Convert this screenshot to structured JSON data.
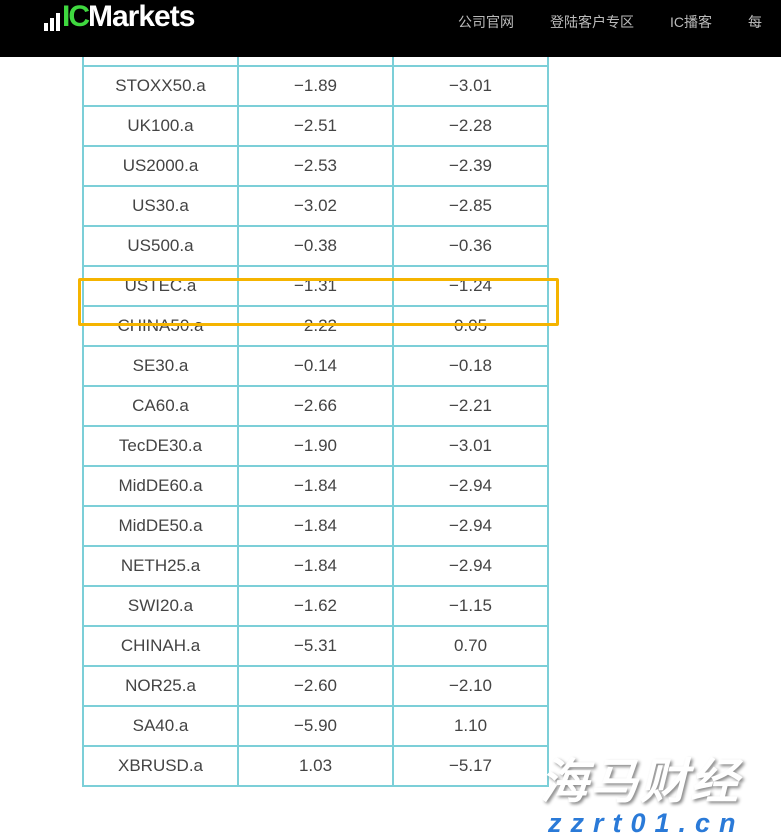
{
  "header": {
    "logo": {
      "ic": "IC",
      "markets": "Markets"
    },
    "nav": [
      "公司官网",
      "登陆客户专区",
      "IC播客",
      "每"
    ]
  },
  "table": {
    "rows": [
      [
        "",
        "",
        " "
      ],
      [
        "STOXX50.a",
        "−1.89",
        "−3.01"
      ],
      [
        "UK100.a",
        "−2.51",
        "−2.28"
      ],
      [
        "US2000.a",
        "−2.53",
        "−2.39"
      ],
      [
        "US30.a",
        "−3.02",
        "−2.85"
      ],
      [
        "US500.a",
        "−0.38",
        "−0.36"
      ],
      [
        "USTEC.a",
        "−1.31",
        "−1.24"
      ],
      [
        "CHINA50.a",
        "−2.22",
        "0.05"
      ],
      [
        "SE30.a",
        "−0.14",
        "−0.18"
      ],
      [
        "CA60.a",
        "−2.66",
        "−2.21"
      ],
      [
        "TecDE30.a",
        "−1.90",
        "−3.01"
      ],
      [
        "MidDE60.a",
        "−1.84",
        "−2.94"
      ],
      [
        "MidDE50.a",
        "−1.84",
        "−2.94"
      ],
      [
        "NETH25.a",
        "−1.84",
        "−2.94"
      ],
      [
        "SWI20.a",
        "−1.62",
        "−1.15"
      ],
      [
        "CHINAH.a",
        "−5.31",
        "0.70"
      ],
      [
        "NOR25.a",
        "−2.60",
        "−2.10"
      ],
      [
        "SA40.a",
        "−5.90",
        "1.10"
      ],
      [
        "XBRUSD.a",
        "1.03",
        "−5.17"
      ]
    ],
    "highlighted_row": "USTEC.a",
    "highlight_color": "#f5b400",
    "border_color": "#7ccfd8"
  },
  "watermark": {
    "title": "海马财经",
    "url": "zzrt01.cn"
  }
}
